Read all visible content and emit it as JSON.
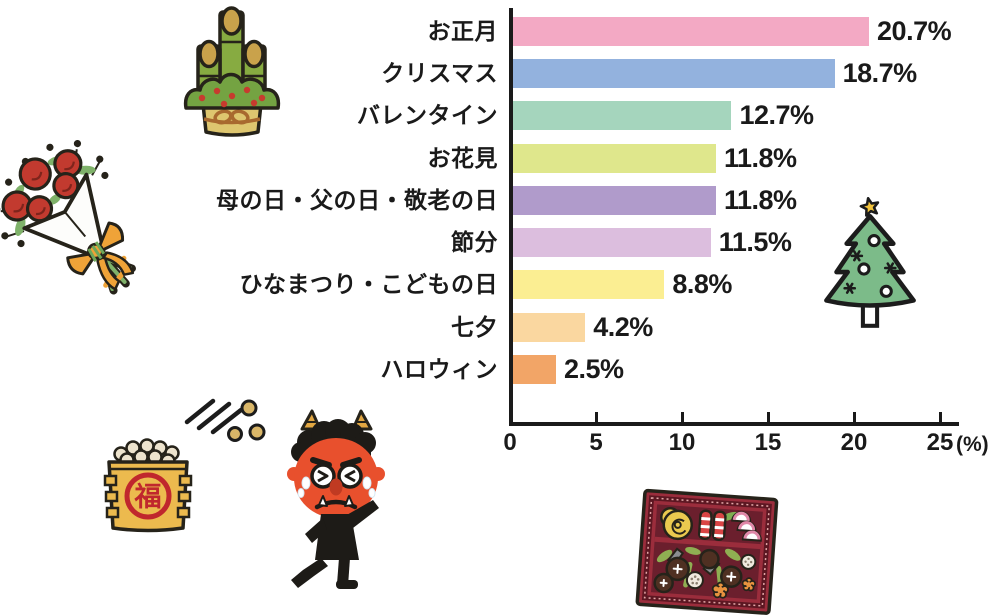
{
  "page": {
    "background": "#ffffff"
  },
  "chart_data": {
    "type": "bar",
    "orientation": "horizontal",
    "title": "",
    "categories": [
      "お正月",
      "クリスマス",
      "バレンタイン",
      "お花見",
      "母の日・父の日・敬老の日",
      "節分",
      "ひなまつり・こどもの日",
      "七夕",
      "ハロウィン"
    ],
    "values": [
      20.7,
      18.7,
      12.7,
      11.8,
      11.8,
      11.5,
      8.8,
      4.2,
      2.5
    ],
    "value_labels": [
      "20.7%",
      "18.7%",
      "12.7%",
      "11.8%",
      "11.8%",
      "11.5%",
      "8.8%",
      "4.2%",
      "2.5%"
    ],
    "bar_colors": [
      "#f3a9c4",
      "#93b2de",
      "#a5d5bd",
      "#dfe78c",
      "#b09bcb",
      "#dcbede",
      "#fbee92",
      "#fad7a0",
      "#f2a567"
    ],
    "x_ticks": [
      "0",
      "5",
      "10",
      "15",
      "20",
      "25"
    ],
    "x_tick_values": [
      0,
      5,
      10,
      15,
      20,
      25
    ],
    "xlabel": "(%)",
    "xlim": [
      0,
      26
    ],
    "ylabel": "",
    "grid": false,
    "legend": "none",
    "axis_color": "#1a1a1a"
  },
  "illustrations": {
    "kadomatsu": {
      "label": "kadomatsu new-year pine and bamboo decoration"
    },
    "bouquet": {
      "label": "red carnation bouquet with orange ribbon"
    },
    "christmas_tree": {
      "label": "christmas tree with gold star"
    },
    "flying_beans": {
      "label": "thrown setsubun beans with speed lines"
    },
    "masu_box": {
      "label": "masu box full of roasted soybeans",
      "kanji": "福"
    },
    "oni": {
      "label": "crying red oni demon running away"
    },
    "osechi": {
      "label": "osechi new-year food box"
    }
  }
}
